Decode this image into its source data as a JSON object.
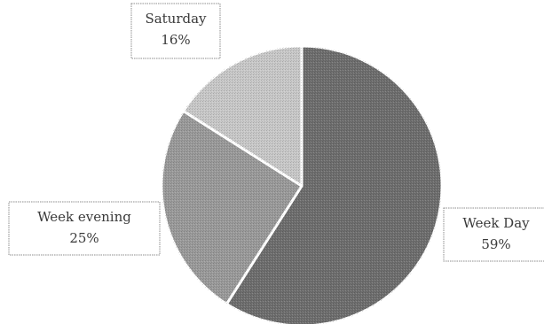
{
  "chart_data": {
    "type": "pie",
    "title": "",
    "legend": "none",
    "slices": [
      {
        "label": "Week Day",
        "value": 59,
        "value_label": "59%",
        "color": "#6e6e6e"
      },
      {
        "label": "Week evening",
        "value": 25,
        "value_label": "25%",
        "color": "#9a9a9a"
      },
      {
        "label": "Saturday",
        "value": 16,
        "value_label": "16%",
        "color": "#c8c8c8"
      }
    ]
  }
}
